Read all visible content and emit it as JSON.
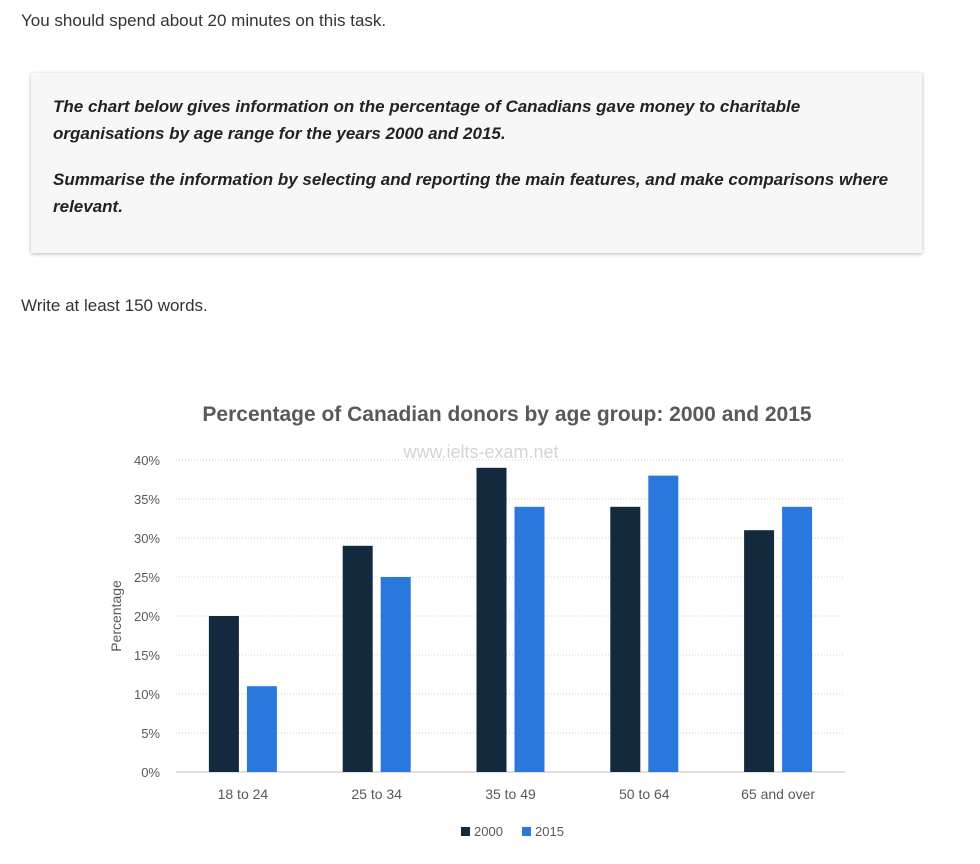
{
  "instructions": {
    "intro": "You should spend about 20 minutes on this task.",
    "task_paragraph_1": "The chart below gives information on the percentage of Canadians gave money to charitable organisations by age range for the years 2000 and 2015.",
    "task_paragraph_2": "Summarise the information by selecting and reporting the main features, and make comparisons where relevant.",
    "word_count": "Write at least 150 words."
  },
  "watermark": "www.ielts-exam.net",
  "colors": {
    "series_2000": "#13293d",
    "series_2015": "#2a78de",
    "title": "#595959",
    "axis_text": "#595959",
    "grid": "#d0d0d0"
  },
  "chart_data": {
    "type": "bar",
    "title": "Percentage of Canadian donors by age group: 2000 and 2015",
    "xlabel": "",
    "ylabel": "Percentage",
    "categories": [
      "18 to 24",
      "25 to 34",
      "35 to 49",
      "50 to 64",
      "65 and over"
    ],
    "series": [
      {
        "name": "2000",
        "values": [
          20,
          29,
          39,
          34,
          31
        ]
      },
      {
        "name": "2015",
        "values": [
          11,
          25,
          34,
          38,
          34
        ]
      }
    ],
    "ylim": [
      0,
      40
    ],
    "yticks": [
      "0%",
      "5%",
      "10%",
      "15%",
      "20%",
      "25%",
      "30%",
      "35%",
      "40%"
    ],
    "grid": true,
    "legend": "bottom-center"
  }
}
